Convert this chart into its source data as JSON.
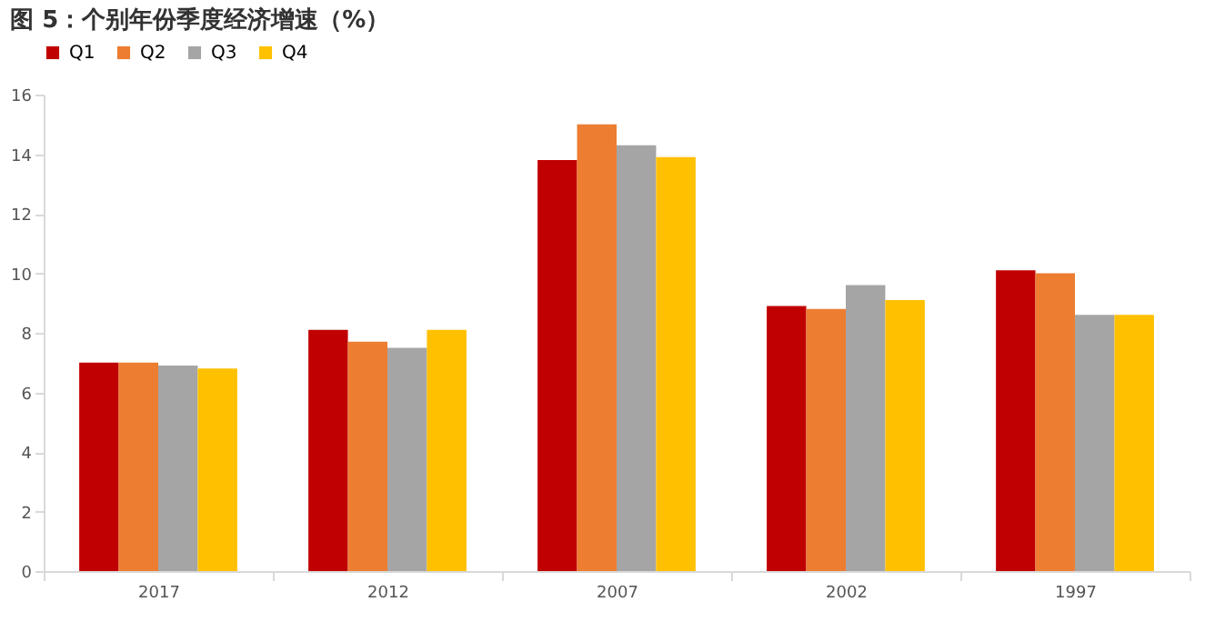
{
  "chart_data": {
    "type": "bar",
    "title": "图 5：个别年份季度经济增速（%）",
    "categories": [
      "2017",
      "2012",
      "2007",
      "2002",
      "1997"
    ],
    "series": [
      {
        "name": "Q1",
        "color": "#c00000",
        "values": [
          7.0,
          8.1,
          13.8,
          8.9,
          10.1
        ]
      },
      {
        "name": "Q2",
        "color": "#ed7d31",
        "values": [
          7.0,
          7.7,
          15.0,
          8.8,
          10.0
        ]
      },
      {
        "name": "Q3",
        "color": "#a5a5a5",
        "values": [
          6.9,
          7.5,
          14.3,
          9.6,
          8.6
        ]
      },
      {
        "name": "Q4",
        "color": "#ffc000",
        "values": [
          6.8,
          8.1,
          13.9,
          9.1,
          8.6
        ]
      }
    ],
    "ylim": [
      0,
      16
    ],
    "yticks": [
      0,
      2,
      4,
      6,
      8,
      10,
      12,
      14,
      16
    ],
    "grid": false,
    "legend": "top"
  }
}
